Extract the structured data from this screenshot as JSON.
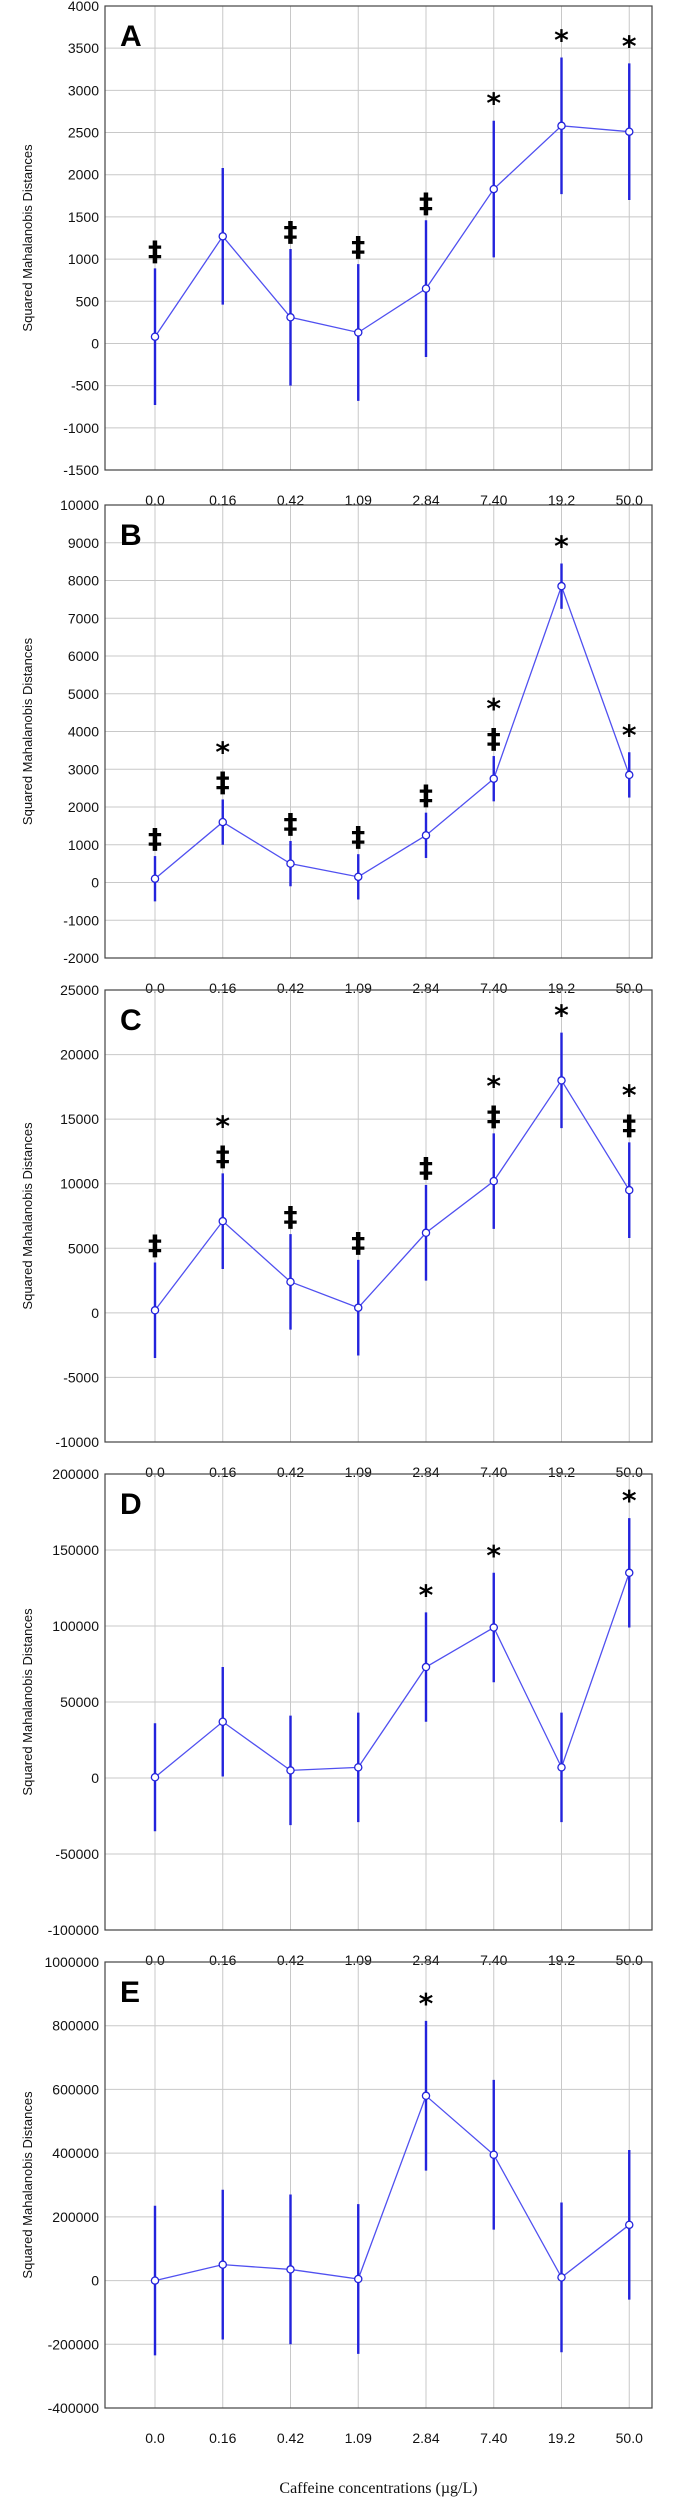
{
  "chart_data": [
    {
      "type": "line",
      "panel": "A",
      "ylabel": "Squared Mahalanobis Distances",
      "xlabel": "",
      "categories": [
        "0.0",
        "0.16",
        "0.42",
        "1.09",
        "2.84",
        "7.40",
        "19.2",
        "50.0"
      ],
      "values": [
        80,
        1270,
        310,
        130,
        650,
        1830,
        2580,
        2510
      ],
      "lower": [
        -730,
        460,
        -500,
        -680,
        -160,
        1020,
        1770,
        1700
      ],
      "upper": [
        890,
        2080,
        1120,
        940,
        1460,
        2640,
        3390,
        3320
      ],
      "ylim": [
        -1500,
        4000
      ],
      "ticks": [
        -1500,
        -1000,
        -500,
        0,
        500,
        1000,
        1500,
        2000,
        2500,
        3000,
        3500,
        4000
      ],
      "marks": [
        [
          "‡"
        ],
        [],
        [
          "‡"
        ],
        [
          "‡"
        ],
        [
          "‡"
        ],
        [
          "*"
        ],
        [
          "*"
        ],
        [
          "*"
        ]
      ],
      "grid": true,
      "color": "#2323dc"
    },
    {
      "type": "line",
      "panel": "B",
      "ylabel": "Squared Mahalanobis Distances",
      "xlabel": "",
      "categories": [
        "0.0",
        "0.16",
        "0.42",
        "1.09",
        "2.84",
        "7.40",
        "19.2",
        "50.0"
      ],
      "values": [
        100,
        1600,
        500,
        150,
        1250,
        2750,
        7850,
        2850
      ],
      "lower": [
        -500,
        1000,
        -100,
        -450,
        650,
        2150,
        7250,
        2250
      ],
      "upper": [
        700,
        2200,
        1100,
        750,
        1850,
        3350,
        8450,
        3450
      ],
      "ylim": [
        -2000,
        10000
      ],
      "ticks": [
        -2000,
        -1000,
        0,
        1000,
        2000,
        3000,
        4000,
        5000,
        6000,
        7000,
        8000,
        9000,
        10000
      ],
      "marks": [
        [
          "‡"
        ],
        [
          "*",
          "‡"
        ],
        [
          "‡"
        ],
        [
          "‡"
        ],
        [
          "‡"
        ],
        [
          "*",
          "‡"
        ],
        [
          "*"
        ],
        [
          "*"
        ]
      ],
      "grid": true,
      "color": "#2323dc"
    },
    {
      "type": "line",
      "panel": "C",
      "ylabel": "Squared Mahalanobis Distances",
      "xlabel": "",
      "categories": [
        "0.0",
        "0.16",
        "0.42",
        "1.09",
        "2.84",
        "7.40",
        "19.2",
        "50.0"
      ],
      "values": [
        200,
        7100,
        2400,
        400,
        6200,
        10200,
        18000,
        9500
      ],
      "lower": [
        -3500,
        3400,
        -1300,
        -3300,
        2500,
        6500,
        14300,
        5800
      ],
      "upper": [
        3900,
        10800,
        6100,
        4100,
        9900,
        13900,
        21700,
        13200
      ],
      "ylim": [
        -10000,
        25000
      ],
      "ticks": [
        -10000,
        -5000,
        0,
        5000,
        10000,
        15000,
        20000,
        25000
      ],
      "marks": [
        [
          "‡"
        ],
        [
          "*",
          "‡"
        ],
        [
          "‡"
        ],
        [
          "‡"
        ],
        [
          "‡"
        ],
        [
          "*",
          "‡"
        ],
        [
          "*"
        ],
        [
          "*",
          "‡"
        ]
      ],
      "grid": true,
      "color": "#2323dc"
    },
    {
      "type": "line",
      "panel": "D",
      "ylabel": "Squared Mahalanobis Distances",
      "xlabel": "",
      "categories": [
        "0.0",
        "0.16",
        "0.42",
        "1.09",
        "2.84",
        "7.40",
        "19.2",
        "50.0"
      ],
      "values": [
        500,
        37000,
        5000,
        7000,
        73000,
        99000,
        7000,
        135000
      ],
      "lower": [
        -35000,
        1000,
        -31000,
        -29000,
        37000,
        63000,
        -29000,
        99000
      ],
      "upper": [
        36000,
        73000,
        41000,
        43000,
        109000,
        135000,
        43000,
        171000
      ],
      "ylim": [
        -100000,
        200000
      ],
      "ticks": [
        -100000,
        -50000,
        0,
        50000,
        100000,
        150000,
        200000
      ],
      "marks": [
        [],
        [],
        [],
        [],
        [
          "*"
        ],
        [
          "*"
        ],
        [],
        [
          "*"
        ]
      ],
      "grid": true,
      "color": "#2323dc"
    },
    {
      "type": "line",
      "panel": "E",
      "ylabel": "Squared Mahalanobis Distances",
      "xlabel": "Caffeine concentrations (µg/L)",
      "categories": [
        "0.0",
        "0.16",
        "0.42",
        "1.09",
        "2.84",
        "7.40",
        "19.2",
        "50.0"
      ],
      "values": [
        0,
        50000,
        35000,
        5000,
        580000,
        395000,
        10000,
        175000
      ],
      "lower": [
        -235000,
        -185000,
        -200000,
        -230000,
        345000,
        160000,
        -225000,
        -60000
      ],
      "upper": [
        235000,
        285000,
        270000,
        240000,
        815000,
        630000,
        245000,
        410000
      ],
      "ylim": [
        -400000,
        1000000
      ],
      "ticks": [
        -400000,
        -200000,
        0,
        200000,
        400000,
        600000,
        800000,
        1000000
      ],
      "marks": [
        [],
        [],
        [],
        [],
        [
          "*"
        ],
        [],
        [],
        []
      ],
      "grid": true,
      "color": "#2323dc"
    }
  ]
}
